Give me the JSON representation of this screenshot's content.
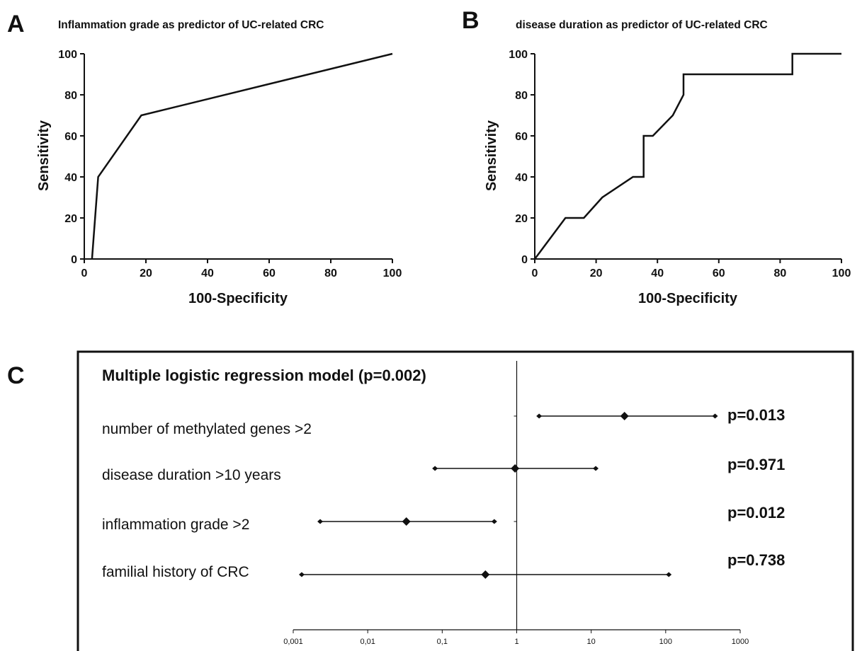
{
  "panels": {
    "a_letter": "A",
    "b_letter": "B",
    "c_letter": "C"
  },
  "chart_data": [
    {
      "type": "line",
      "title": "Inflammation grade as predictor of UC-related CRC",
      "xlabel": "100-Specificity",
      "ylabel": "Sensitivity",
      "xlim": [
        0,
        100
      ],
      "ylim": [
        0,
        100
      ],
      "xticks": [
        "0",
        "20",
        "40",
        "60",
        "80",
        "100"
      ],
      "yticks": [
        "0",
        "20",
        "40",
        "60",
        "80",
        "100"
      ],
      "grid": false,
      "series": [
        {
          "x": [
            2.5,
            4.5,
            18.5,
            100
          ],
          "y": [
            0,
            40,
            70,
            100
          ]
        }
      ]
    },
    {
      "type": "line",
      "title": "disease duration as predictor of UC-related CRC",
      "xlabel": "100-Specificity",
      "ylabel": "Sensitivity",
      "xlim": [
        0,
        100
      ],
      "ylim": [
        0,
        100
      ],
      "xticks": [
        "0",
        "20",
        "40",
        "60",
        "80",
        "100"
      ],
      "yticks": [
        "0",
        "20",
        "40",
        "60",
        "80",
        "100"
      ],
      "grid": false,
      "series": [
        {
          "x": [
            0,
            10,
            16,
            22,
            32,
            35.5,
            35.5,
            38.5,
            45,
            48.5,
            48.5,
            84,
            84,
            100
          ],
          "y": [
            0,
            20,
            20,
            30,
            40,
            40,
            60,
            60,
            70,
            80,
            90,
            90,
            100,
            100
          ]
        }
      ]
    },
    {
      "type": "forest",
      "title": "Multiple logistic regression model (p=0.002)",
      "scale": "log",
      "xlim": [
        0.001,
        1000
      ],
      "xticks": [
        "0,001",
        "0,01",
        "0,1",
        "1",
        "10",
        "100",
        "1000"
      ],
      "reference_line": 1,
      "rows": [
        {
          "label": "number of methylated genes >2",
          "estimate": 28,
          "lower": 2,
          "upper": 460,
          "p": "p=0.013"
        },
        {
          "label": "disease duration >10 years",
          "estimate": 0.95,
          "lower": 0.08,
          "upper": 11.5,
          "p": "p=0.971"
        },
        {
          "label": "inflammation grade >2",
          "estimate": 0.033,
          "lower": 0.0023,
          "upper": 0.5,
          "p": "p=0.012"
        },
        {
          "label": "familial history of  CRC",
          "estimate": 0.38,
          "lower": 0.0013,
          "upper": 110,
          "p": "p=0.738"
        }
      ]
    }
  ]
}
